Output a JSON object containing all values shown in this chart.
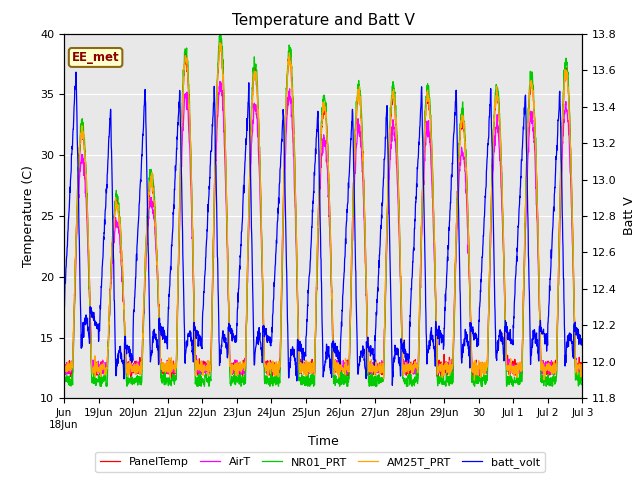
{
  "title": "Temperature and Batt V",
  "xlabel": "Time",
  "ylabel_left": "Temperature (C)",
  "ylabel_right": "Batt V",
  "ylim_left": [
    10,
    40
  ],
  "ylim_right": [
    11.8,
    13.8
  ],
  "annotation": "EE_met",
  "background_color": "#e8e8e8",
  "figure_bg": "#ffffff",
  "legend": [
    "PanelTemp",
    "AirT",
    "NR01_PRT",
    "AM25T_PRT",
    "batt_volt"
  ],
  "line_colors": [
    "#ff0000",
    "#ff00ff",
    "#00cc00",
    "#ffa500",
    "#0000ff"
  ],
  "yticks_left": [
    10,
    15,
    20,
    25,
    30,
    35,
    40
  ],
  "yticks_right": [
    11.8,
    12.0,
    12.2,
    12.4,
    12.6,
    12.8,
    13.0,
    13.2,
    13.4,
    13.6,
    13.8
  ],
  "n_days": 15,
  "pts_per_day": 144
}
